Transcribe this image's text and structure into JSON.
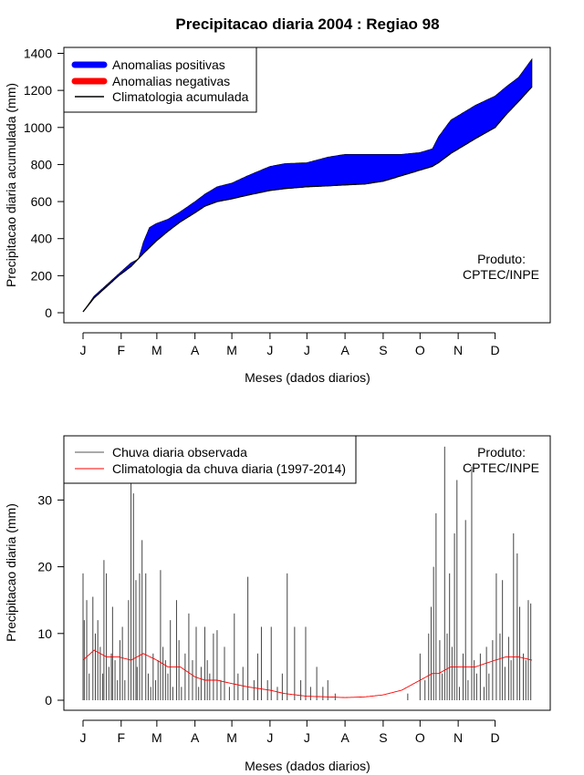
{
  "title": "Precipitacao diaria 2004 : Regiao 98",
  "note": [
    "Produto:",
    "CPTEC/INPE"
  ],
  "chart_data": [
    {
      "type": "area",
      "name": "accumulated",
      "ylabel": "Precipitacao diaria acumulada (mm)",
      "xlabel": "Meses (dados diarios)",
      "months": [
        "J",
        "F",
        "M",
        "A",
        "M",
        "J",
        "J",
        "A",
        "S",
        "O",
        "N",
        "D"
      ],
      "month_start_days": [
        1,
        32,
        61,
        92,
        122,
        153,
        183,
        214,
        245,
        275,
        306,
        336
      ],
      "ylim": [
        -50,
        1420
      ],
      "yticks": [
        0,
        200,
        400,
        600,
        800,
        1000,
        1200,
        1400
      ],
      "legend": [
        {
          "label": "Anomalias positivas",
          "color": "#0000ff"
        },
        {
          "label": "Anomalias negativas",
          "color": "#ff0000"
        },
        {
          "label": "Climatologia acumulada",
          "color": "#000000"
        }
      ],
      "legend_position": "top-left",
      "series": [
        {
          "name": "Observada acumulada",
          "days": [
            1,
            10,
            20,
            30,
            40,
            46,
            50,
            55,
            60,
            70,
            80,
            92,
            100,
            110,
            122,
            135,
            153,
            165,
            183,
            200,
            214,
            230,
            245,
            260,
            275,
            285,
            290,
            300,
            310,
            320,
            336,
            345,
            355,
            366
          ],
          "values": [
            5,
            90,
            150,
            210,
            270,
            290,
            380,
            460,
            480,
            505,
            545,
            600,
            640,
            680,
            700,
            740,
            790,
            805,
            810,
            840,
            855,
            855,
            855,
            855,
            865,
            885,
            950,
            1040,
            1080,
            1120,
            1170,
            1220,
            1270,
            1370
          ]
        },
        {
          "name": "Climatologia acumulada",
          "days": [
            1,
            10,
            20,
            30,
            40,
            50,
            61,
            70,
            80,
            92,
            100,
            110,
            122,
            135,
            153,
            165,
            183,
            200,
            214,
            230,
            245,
            260,
            275,
            285,
            290,
            300,
            310,
            320,
            336,
            345,
            355,
            366
          ],
          "values": [
            5,
            80,
            140,
            200,
            250,
            320,
            390,
            440,
            490,
            540,
            575,
            600,
            615,
            635,
            660,
            670,
            680,
            685,
            690,
            695,
            710,
            740,
            770,
            790,
            810,
            860,
            900,
            940,
            1000,
            1070,
            1140,
            1220
          ]
        }
      ]
    },
    {
      "type": "bar",
      "name": "daily",
      "ylabel": "Precipitacao diaria (mm)",
      "xlabel": "Meses (dados diarios)",
      "months": [
        "J",
        "F",
        "M",
        "A",
        "M",
        "J",
        "J",
        "A",
        "S",
        "O",
        "N",
        "D"
      ],
      "month_start_days": [
        1,
        32,
        61,
        92,
        122,
        153,
        183,
        214,
        245,
        275,
        306,
        336
      ],
      "ylim": [
        -1.5,
        39
      ],
      "yticks": [
        0,
        10,
        20,
        30
      ],
      "legend": [
        {
          "label": "Chuva diaria observada",
          "color": "#000000"
        },
        {
          "label": "Climatologia da chuva diaria (1997-2014)",
          "color": "#ff0000"
        }
      ],
      "legend_position": "top-left",
      "series": [
        {
          "name": "Chuva diaria observada",
          "days": [
            1,
            2,
            4,
            6,
            9,
            11,
            13,
            15,
            17,
            18,
            20,
            22,
            24,
            25,
            27,
            29,
            31,
            33,
            35,
            38,
            40,
            42,
            44,
            45,
            47,
            49,
            52,
            54,
            56,
            58,
            60,
            62,
            64,
            66,
            68,
            70,
            72,
            74,
            77,
            79,
            81,
            84,
            87,
            90,
            93,
            95,
            97,
            100,
            102,
            104,
            107,
            110,
            113,
            116,
            120,
            124,
            127,
            131,
            135,
            140,
            143,
            146,
            151,
            154,
            159,
            163,
            167,
            173,
            178,
            182,
            186,
            191,
            196,
            200,
            206,
            265,
            275,
            279,
            282,
            284,
            286,
            288,
            291,
            293,
            295,
            297,
            299,
            301,
            303,
            305,
            307,
            310,
            312,
            314,
            317,
            319,
            321,
            324,
            327,
            329,
            331,
            334,
            337,
            340,
            342,
            344,
            347,
            349,
            351,
            354,
            356,
            359,
            361,
            363,
            365
          ],
          "values": [
            19,
            12,
            15,
            4,
            15.5,
            10,
            12,
            8,
            4,
            21,
            19,
            5,
            7,
            14,
            6,
            3,
            9,
            11,
            3,
            15,
            39,
            31,
            18,
            5,
            19,
            24,
            19,
            4,
            2,
            7,
            3,
            6,
            19.5,
            8,
            6,
            4,
            12,
            2,
            15,
            9,
            2,
            7,
            13,
            6,
            11,
            2,
            5,
            11,
            6,
            4,
            10,
            10.5,
            3,
            8,
            2,
            13,
            4,
            5,
            18.5,
            3,
            7,
            11,
            3,
            11,
            2,
            4,
            19,
            11,
            3,
            11,
            2,
            5,
            2,
            3,
            1,
            1,
            7,
            3,
            10,
            14,
            20,
            28,
            9,
            4,
            38,
            10,
            19,
            8,
            25,
            33,
            2,
            7,
            27,
            3,
            35,
            6,
            4,
            7,
            2,
            8,
            4,
            9,
            19,
            10,
            18,
            5,
            9.5,
            6,
            25,
            22,
            14,
            7,
            6,
            15,
            14.5
          ]
        },
        {
          "name": "Climatologia da chuva diaria (1997-2014)",
          "days": [
            1,
            10,
            20,
            30,
            40,
            50,
            61,
            70,
            80,
            92,
            100,
            110,
            122,
            135,
            153,
            165,
            183,
            200,
            214,
            230,
            245,
            260,
            275,
            285,
            290,
            300,
            310,
            320,
            336,
            345,
            355,
            366
          ],
          "values": [
            6,
            7.5,
            6.5,
            6.5,
            6,
            7,
            6,
            5,
            5,
            3.5,
            3,
            3,
            2.5,
            2,
            1.5,
            1,
            0.6,
            0.5,
            0.4,
            0.5,
            0.8,
            1.5,
            3,
            4,
            4,
            5,
            5,
            5,
            6,
            6.5,
            6.5,
            6
          ]
        }
      ]
    }
  ]
}
